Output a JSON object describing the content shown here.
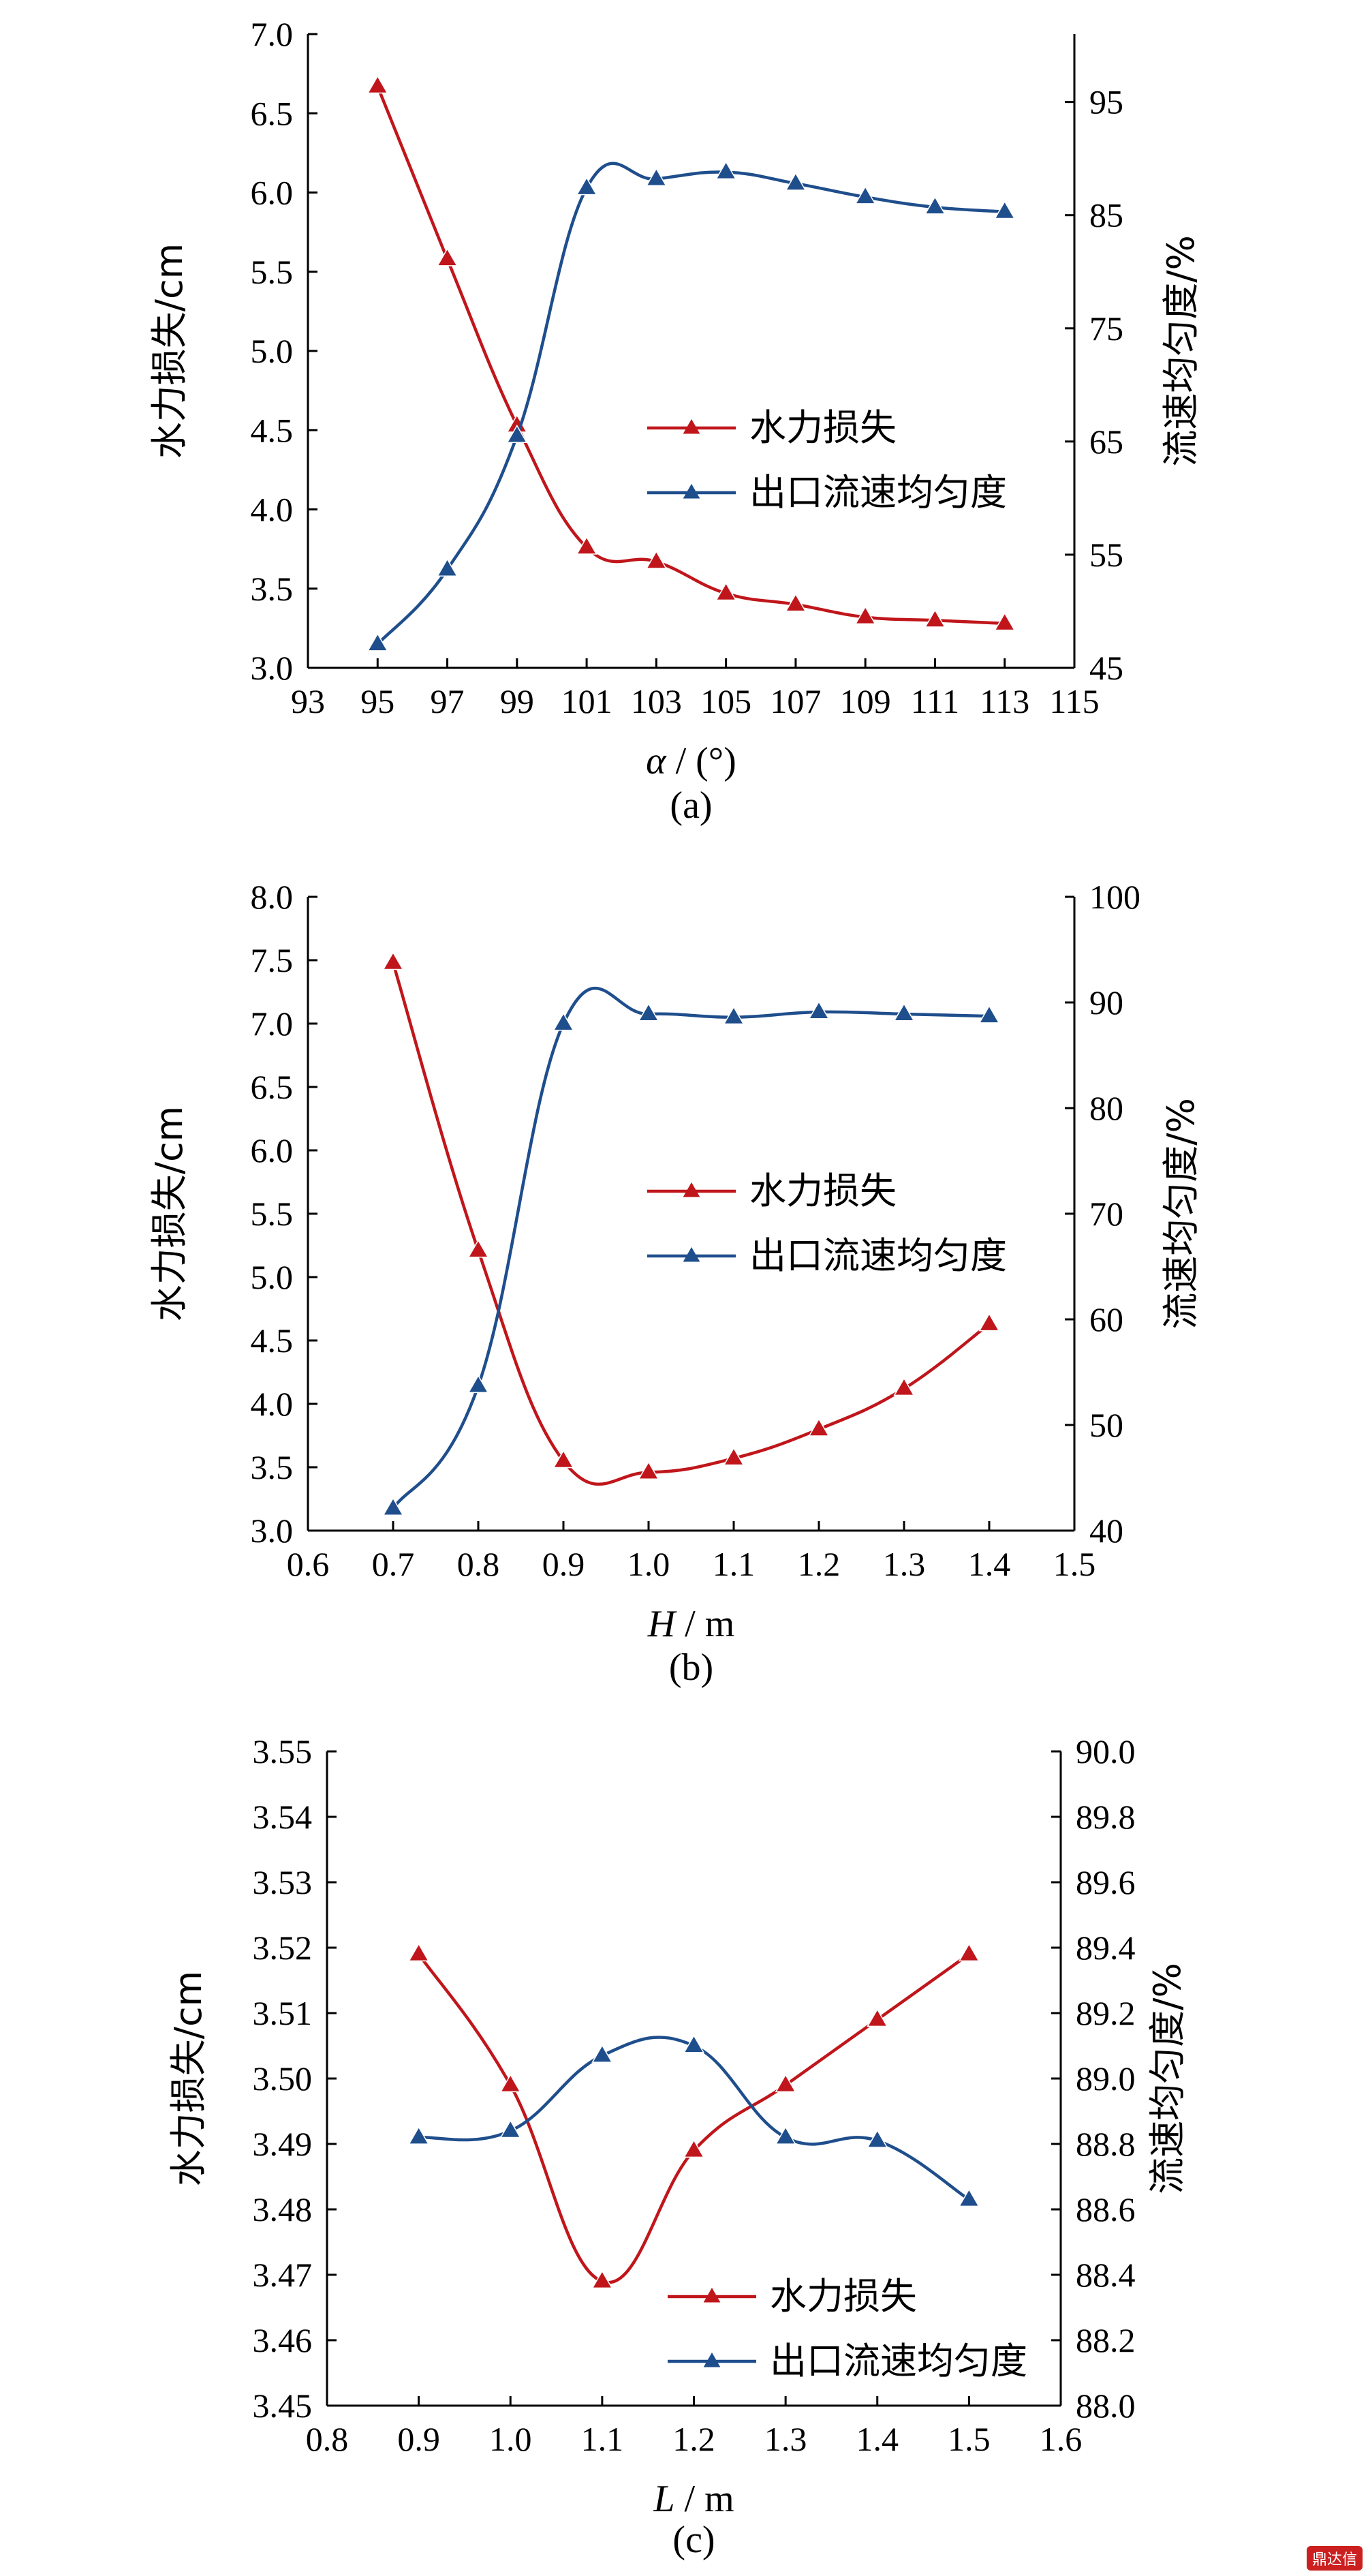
{
  "chart_data": [
    {
      "type": "line",
      "caption": "(a)",
      "xlabel": "α / (°)",
      "ylabel_left": "水力损失/cm",
      "ylabel_right": "流速均匀度/%",
      "xlim": [
        93,
        115
      ],
      "xticks": [
        "93",
        "95",
        "97",
        "99",
        "101",
        "103",
        "105",
        "107",
        "109",
        "111",
        "113",
        "115"
      ],
      "ylim_left": [
        3.0,
        7.0
      ],
      "yticks_left": [
        "3.0",
        "3.5",
        "4.0",
        "4.5",
        "5.0",
        "5.5",
        "6.0",
        "6.5",
        "7.0"
      ],
      "ylim_right": [
        45,
        101
      ],
      "yticks_right": [
        "45",
        "55",
        "65",
        "75",
        "85",
        "95"
      ],
      "legend": [
        "水力损失",
        "出口流速均匀度"
      ],
      "series": [
        {
          "name": "水力损失",
          "axis": "left",
          "color": "#c0161b",
          "x": [
            95,
            97,
            99,
            101,
            103,
            105,
            107,
            109,
            111,
            113
          ],
          "y": [
            6.67,
            5.58,
            4.53,
            3.76,
            3.67,
            3.47,
            3.4,
            3.32,
            3.3,
            3.28
          ]
        },
        {
          "name": "出口流速均匀度",
          "axis": "right",
          "color": "#1f4e8c",
          "x": [
            95,
            97,
            99,
            101,
            103,
            105,
            107,
            109,
            111,
            113
          ],
          "y": [
            47.1,
            53.7,
            65.5,
            87.4,
            88.2,
            88.8,
            87.8,
            86.6,
            85.7,
            85.3
          ]
        }
      ]
    },
    {
      "type": "line",
      "caption": "(b)",
      "xlabel": "H / m",
      "ylabel_left": "水力损失/cm",
      "ylabel_right": "流速均匀度/%",
      "xlim": [
        0.6,
        1.5
      ],
      "xticks": [
        "0.6",
        "0.7",
        "0.8",
        "0.9",
        "1.0",
        "1.1",
        "1.2",
        "1.3",
        "1.4",
        "1.5"
      ],
      "ylim_left": [
        3.0,
        8.0
      ],
      "yticks_left": [
        "3.0",
        "3.5",
        "4.0",
        "4.5",
        "5.0",
        "5.5",
        "6.0",
        "6.5",
        "7.0",
        "7.5",
        "8.0"
      ],
      "ylim_right": [
        40,
        100
      ],
      "yticks_right": [
        "40",
        "50",
        "60",
        "70",
        "80",
        "90",
        "100"
      ],
      "legend": [
        "水力损失",
        "出口流速均匀度"
      ],
      "series": [
        {
          "name": "水力损失",
          "axis": "left",
          "color": "#c0161b",
          "x": [
            0.7,
            0.8,
            0.9,
            1.0,
            1.1,
            1.2,
            1.3,
            1.4
          ],
          "y": [
            7.48,
            5.21,
            3.55,
            3.46,
            3.57,
            3.8,
            4.12,
            4.63
          ]
        },
        {
          "name": "出口流速均匀度",
          "axis": "right",
          "color": "#1f4e8c",
          "x": [
            0.7,
            0.8,
            0.9,
            1.0,
            1.1,
            1.2,
            1.3,
            1.4
          ],
          "y": [
            42.1,
            53.7,
            88.0,
            88.9,
            88.6,
            89.1,
            88.9,
            88.7
          ]
        }
      ]
    },
    {
      "type": "line",
      "caption": "(c)",
      "xlabel": "L / m",
      "ylabel_left": "水力损失/cm",
      "ylabel_right": "流速均匀度/%",
      "xlim": [
        0.8,
        1.6
      ],
      "xticks": [
        "0.8",
        "0.9",
        "1.0",
        "1.1",
        "1.2",
        "1.3",
        "1.4",
        "1.5",
        "1.6"
      ],
      "ylim_left": [
        3.45,
        3.55
      ],
      "yticks_left": [
        "3.45",
        "3.46",
        "3.47",
        "3.48",
        "3.49",
        "3.50",
        "3.51",
        "3.52",
        "3.53",
        "3.54",
        "3.55"
      ],
      "ylim_right": [
        88.0,
        90.0
      ],
      "yticks_right": [
        "88.0",
        "88.2",
        "88.4",
        "88.6",
        "88.8",
        "89.0",
        "89.2",
        "89.4",
        "89.6",
        "89.8",
        "90.0"
      ],
      "legend": [
        "水力损失",
        "出口流速均匀度"
      ],
      "series": [
        {
          "name": "水力损失",
          "axis": "left",
          "color": "#c0161b",
          "x": [
            0.9,
            1.0,
            1.1,
            1.2,
            1.3,
            1.4,
            1.5
          ],
          "y": [
            3.519,
            3.499,
            3.469,
            3.489,
            3.499,
            3.509,
            3.519
          ]
        },
        {
          "name": "出口流速均匀度",
          "axis": "right",
          "color": "#1f4e8c",
          "x": [
            0.9,
            1.0,
            1.1,
            1.2,
            1.3,
            1.4,
            1.5
          ],
          "y": [
            88.82,
            88.84,
            89.07,
            89.1,
            88.82,
            88.81,
            88.63
          ]
        }
      ]
    }
  ]
}
